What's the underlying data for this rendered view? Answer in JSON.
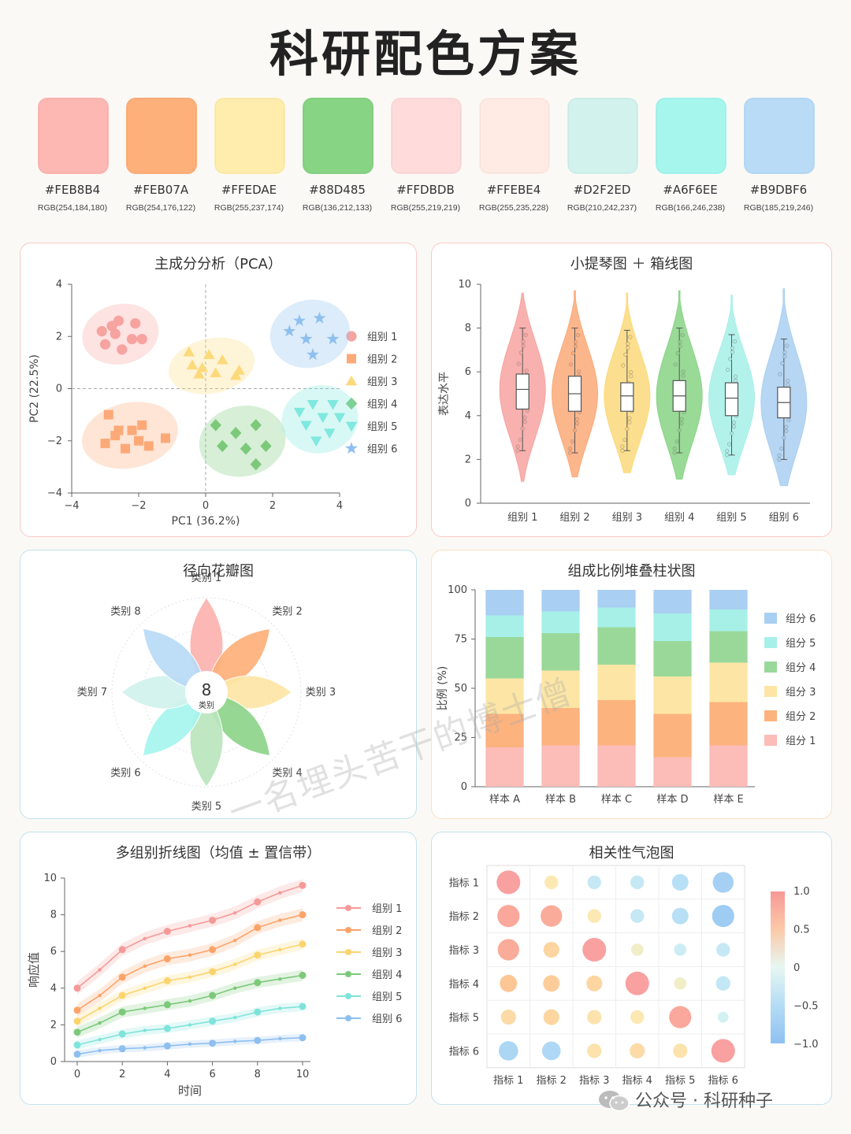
{
  "title": "科研配色方案",
  "palette": [
    {
      "hex": "#FEB8B4",
      "rgb": "RGB(254,184,180)"
    },
    {
      "hex": "#FEB07A",
      "rgb": "RGB(254,176,122)"
    },
    {
      "hex": "#FFEDAE",
      "rgb": "RGB(255,237,174)"
    },
    {
      "hex": "#88D485",
      "rgb": "RGB(136,212,133)"
    },
    {
      "hex": "#FFDBDB",
      "rgb": "RGB(255,219,219)"
    },
    {
      "hex": "#FFEBE4",
      "rgb": "RGB(255,235,228)"
    },
    {
      "hex": "#D2F2ED",
      "rgb": "RGB(210,242,237)"
    },
    {
      "hex": "#A6F6EE",
      "rgb": "RGB(166,246,238)"
    },
    {
      "hex": "#B9DBF6",
      "rgb": "RGB(185,219,246)"
    }
  ],
  "footer": "公众号 · 科研种子",
  "watermark": "一名埋头苦干的博士僧",
  "chart_data": [
    {
      "id": "pca",
      "type": "scatter",
      "title": "主成分分析（PCA）",
      "xlabel": "PC1 (36.2%)",
      "ylabel": "PC2 (22.5%)",
      "xlim": [
        -4,
        4
      ],
      "ylim": [
        -4,
        4
      ],
      "xticks": [
        "−4",
        "−2",
        "0",
        "2",
        "4"
      ],
      "yticks": [
        "−4",
        "−2",
        "0",
        "2",
        "4"
      ],
      "series": [
        {
          "name": "组别 1",
          "marker": "circle",
          "color": "#f7a3a0",
          "points": [
            [
              -3.1,
              2.2
            ],
            [
              -2.6,
              2.6
            ],
            [
              -2.1,
              2.5
            ],
            [
              -2.7,
              2.1
            ],
            [
              -2.2,
              1.9
            ],
            [
              -3.0,
              1.7
            ],
            [
              -2.5,
              1.5
            ],
            [
              -1.9,
              1.9
            ],
            [
              -2.8,
              2.4
            ]
          ]
        },
        {
          "name": "组别 2",
          "marker": "square",
          "color": "#fca978",
          "points": [
            [
              -2.9,
              -1.0
            ],
            [
              -2.2,
              -1.6
            ],
            [
              -1.9,
              -1.4
            ],
            [
              -2.6,
              -1.6
            ],
            [
              -3.0,
              -2.1
            ],
            [
              -2.4,
              -2.3
            ],
            [
              -1.7,
              -2.2
            ],
            [
              -1.2,
              -1.9
            ],
            [
              -2.7,
              -1.8
            ],
            [
              -2.0,
              -2.0
            ]
          ]
        },
        {
          "name": "组别 3",
          "marker": "triangle",
          "color": "#fcd97a",
          "points": [
            [
              -0.5,
              1.4
            ],
            [
              0.1,
              1.3
            ],
            [
              -0.4,
              0.9
            ],
            [
              0.5,
              1.1
            ],
            [
              -0.1,
              0.8
            ],
            [
              1.0,
              0.7
            ],
            [
              0.3,
              0.6
            ],
            [
              0.9,
              0.5
            ],
            [
              -0.2,
              0.55
            ]
          ]
        },
        {
          "name": "组别 4",
          "marker": "diamond",
          "color": "#7cc97a",
          "points": [
            [
              0.9,
              -1.7
            ],
            [
              1.5,
              -1.4
            ],
            [
              0.5,
              -2.2
            ],
            [
              1.2,
              -2.3
            ],
            [
              1.8,
              -2.2
            ],
            [
              1.5,
              -2.9
            ],
            [
              0.3,
              -1.4
            ]
          ]
        },
        {
          "name": "组别 5",
          "marker": "triangle-down",
          "color": "#7fe8df",
          "points": [
            [
              3.2,
              -0.6
            ],
            [
              3.8,
              -0.6
            ],
            [
              3.5,
              -1.1
            ],
            [
              3.0,
              -1.4
            ],
            [
              3.7,
              -1.7
            ],
            [
              3.3,
              -2.0
            ],
            [
              2.8,
              -0.9
            ],
            [
              4.0,
              -1.1
            ]
          ]
        },
        {
          "name": "组别 6",
          "marker": "star",
          "color": "#8ec0ef",
          "points": [
            [
              2.8,
              2.6
            ],
            [
              3.4,
              2.7
            ],
            [
              3.0,
              1.9
            ],
            [
              3.8,
              1.9
            ],
            [
              3.2,
              1.3
            ],
            [
              2.5,
              2.2
            ]
          ]
        }
      ]
    },
    {
      "id": "violin",
      "type": "violin",
      "title": "小提琴图 ＋ 箱线图",
      "ylabel": "表达水平",
      "ylim": [
        0,
        10
      ],
      "yticks": [
        "0",
        "2",
        "4",
        "6",
        "8",
        "10"
      ],
      "categories": [
        "组别 1",
        "组别 2",
        "组别 3",
        "组别 4",
        "组别 5",
        "组别 6"
      ],
      "colors": [
        "#f7a3a0",
        "#fca978",
        "#fcd97a",
        "#88d485",
        "#a6f0e8",
        "#a9cff2"
      ],
      "range": [
        [
          1.0,
          9.6
        ],
        [
          1.2,
          9.7
        ],
        [
          1.4,
          9.6
        ],
        [
          1.1,
          9.7
        ],
        [
          1.3,
          9.5
        ],
        [
          0.8,
          9.8
        ]
      ],
      "box": [
        [
          4.3,
          5.2,
          5.9
        ],
        [
          4.2,
          5.0,
          5.8
        ],
        [
          4.2,
          4.9,
          5.5
        ],
        [
          4.2,
          4.9,
          5.6
        ],
        [
          4.0,
          4.8,
          5.5
        ],
        [
          3.9,
          4.6,
          5.3
        ]
      ],
      "whisker": [
        [
          2.4,
          8.0
        ],
        [
          2.3,
          8.0
        ],
        [
          2.4,
          7.9
        ],
        [
          2.3,
          8.0
        ],
        [
          2.2,
          7.7
        ],
        [
          2.0,
          7.5
        ]
      ]
    },
    {
      "id": "petal",
      "type": "radial-petal",
      "title": "径向花瓣图",
      "center_value": "8",
      "center_label": "类别",
      "categories": [
        "类别 1",
        "类别 2",
        "类别 3",
        "类别 4",
        "类别 5",
        "类别 6",
        "类别 7",
        "类别 8"
      ],
      "values": [
        1.0,
        0.95,
        0.9,
        0.95,
        1.0,
        0.95,
        0.9,
        0.95
      ],
      "colors": [
        "#fcb3ae",
        "#fdb07a",
        "#fde6a5",
        "#8fd48c",
        "#b9e6bd",
        "#a6f6ee",
        "#d2f2ed",
        "#b9dbf6"
      ]
    },
    {
      "id": "stacked",
      "type": "bar",
      "stacked": true,
      "title": "组成比例堆叠柱状图",
      "ylabel": "比例 (%)",
      "ylim": [
        0,
        100
      ],
      "yticks": [
        "0",
        "25",
        "50",
        "75",
        "100"
      ],
      "categories": [
        "样本 A",
        "样本 B",
        "样本 C",
        "样本 D",
        "样本 E"
      ],
      "series": [
        {
          "name": "组分 1",
          "color": "#fcbcb8",
          "values": [
            20,
            21,
            21,
            15,
            21
          ]
        },
        {
          "name": "组分 2",
          "color": "#fcb37e",
          "values": [
            17,
            19,
            23,
            22,
            22
          ]
        },
        {
          "name": "组分 3",
          "color": "#fde6a5",
          "values": [
            18,
            19,
            18,
            19,
            20
          ]
        },
        {
          "name": "组分 4",
          "color": "#9ad89a",
          "values": [
            21,
            19,
            19,
            18,
            16
          ]
        },
        {
          "name": "组分 5",
          "color": "#a6f0e8",
          "values": [
            11,
            11,
            10,
            14,
            11
          ]
        },
        {
          "name": "组分 6",
          "color": "#a9cff2",
          "values": [
            13,
            11,
            9,
            12,
            10
          ]
        }
      ]
    },
    {
      "id": "line",
      "type": "line",
      "title": "多组别折线图（均值 ± 置信带）",
      "xlabel": "时间",
      "ylabel": "响应值",
      "xlim": [
        0,
        10
      ],
      "ylim": [
        0,
        10
      ],
      "xticks": [
        "0",
        "2",
        "4",
        "6",
        "8",
        "10"
      ],
      "yticks": [
        "0",
        "2",
        "4",
        "6",
        "8",
        "10"
      ],
      "x": [
        0,
        1,
        2,
        3,
        4,
        5,
        6,
        7,
        8,
        9,
        10
      ],
      "series": [
        {
          "name": "组别 1",
          "color": "#f59a98",
          "values": [
            4.0,
            5.0,
            6.1,
            6.7,
            7.1,
            7.4,
            7.7,
            8.1,
            8.7,
            9.2,
            9.6
          ],
          "band": 0.35
        },
        {
          "name": "组别 2",
          "color": "#fca36a",
          "values": [
            2.8,
            3.6,
            4.6,
            5.2,
            5.6,
            5.8,
            6.1,
            6.6,
            7.3,
            7.7,
            8.0
          ],
          "band": 0.35
        },
        {
          "name": "组别 3",
          "color": "#fcd46e",
          "values": [
            2.2,
            2.9,
            3.6,
            4.0,
            4.4,
            4.6,
            4.9,
            5.3,
            5.8,
            6.1,
            6.4
          ],
          "band": 0.3
        },
        {
          "name": "组别 4",
          "color": "#7cc97a",
          "values": [
            1.6,
            2.1,
            2.7,
            2.9,
            3.1,
            3.3,
            3.6,
            4.0,
            4.3,
            4.5,
            4.7
          ],
          "band": 0.3
        },
        {
          "name": "组别 5",
          "color": "#7fe3db",
          "values": [
            0.9,
            1.2,
            1.5,
            1.7,
            1.8,
            2.0,
            2.2,
            2.4,
            2.7,
            2.9,
            3.0
          ],
          "band": 0.25
        },
        {
          "name": "组别 6",
          "color": "#8ebff0",
          "values": [
            0.4,
            0.6,
            0.7,
            0.75,
            0.85,
            0.95,
            1.0,
            1.1,
            1.15,
            1.25,
            1.3
          ],
          "band": 0.2
        }
      ]
    },
    {
      "id": "bubble",
      "type": "heatmap",
      "title": "相关性气泡图",
      "rows": [
        "指标 1",
        "指标 2",
        "指标 3",
        "指标 4",
        "指标 5",
        "指标 6"
      ],
      "cols": [
        "指标 1",
        "指标 2",
        "指标 3",
        "指标 4",
        "指标 5",
        "指标 6"
      ],
      "colorbar_ticks": [
        "1.0",
        "0.5",
        "0",
        "−0.5",
        "−1.0"
      ],
      "values": [
        [
          1.0,
          0.3,
          -0.3,
          -0.3,
          -0.5,
          -0.8
        ],
        [
          0.9,
          0.85,
          0.3,
          -0.3,
          -0.5,
          -0.9
        ],
        [
          0.85,
          0.45,
          1.0,
          0.2,
          -0.2,
          -0.3
        ],
        [
          0.55,
          0.5,
          0.45,
          1.0,
          0.2,
          -0.35
        ],
        [
          0.4,
          0.45,
          0.35,
          0.3,
          0.9,
          -0.1
        ],
        [
          -0.7,
          -0.65,
          0.35,
          0.4,
          0.35,
          1.0
        ]
      ]
    }
  ]
}
